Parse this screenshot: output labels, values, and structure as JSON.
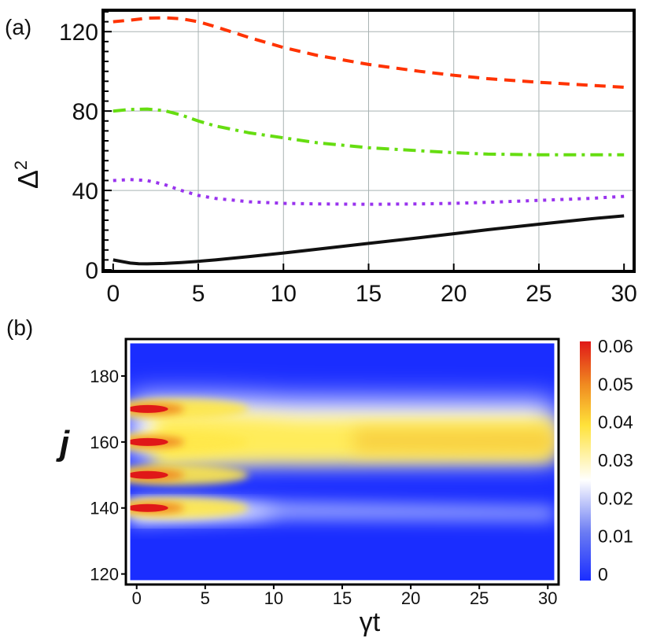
{
  "chart_data": [
    {
      "type": "line",
      "panel_label": "(a)",
      "ylabel": "Δ",
      "ylabel_superscript": "2",
      "xlabel": "",
      "xlim": [
        -0.5,
        30.5
      ],
      "ylim": [
        0,
        130
      ],
      "xticks": [
        0,
        5,
        10,
        15,
        20,
        25,
        30
      ],
      "yticks": [
        0,
        40,
        80,
        120
      ],
      "grid": true,
      "series": [
        {
          "name": "red-dashed",
          "color": "#ff3300",
          "style": "dashed",
          "x": [
            0,
            1,
            2,
            3,
            4,
            5,
            6,
            8,
            10,
            12,
            15,
            18,
            20,
            22,
            25,
            28,
            30
          ],
          "y": [
            125,
            125.8,
            126.8,
            127,
            126.5,
            125,
            122.5,
            117,
            112,
            108,
            103.5,
            100,
            98,
            96.3,
            94.5,
            93,
            92
          ]
        },
        {
          "name": "green-dash-dot",
          "color": "#66dd11",
          "style": "dashdot",
          "x": [
            0,
            1,
            2,
            3,
            4,
            5,
            6,
            8,
            10,
            12,
            15,
            18,
            20,
            22,
            25,
            28,
            30
          ],
          "y": [
            80,
            80.8,
            81,
            80.2,
            78,
            75,
            72.5,
            69,
            66.5,
            64,
            61.5,
            60,
            59,
            58.3,
            58,
            58,
            58
          ]
        },
        {
          "name": "purple-dotted",
          "color": "#9933ee",
          "style": "dotted",
          "x": [
            0,
            1,
            2,
            3,
            4,
            5,
            6,
            8,
            10,
            12,
            15,
            18,
            20,
            22,
            25,
            28,
            30
          ],
          "y": [
            45,
            45.5,
            45,
            43,
            40,
            37.5,
            36,
            34.3,
            33.5,
            33.2,
            33,
            33.2,
            33.5,
            34,
            35,
            36,
            37
          ]
        },
        {
          "name": "black-solid",
          "color": "#111111",
          "style": "solid",
          "x": [
            0,
            0.5,
            1,
            1.5,
            2,
            3,
            4,
            5,
            6,
            8,
            10,
            12,
            15,
            18,
            20,
            22,
            25,
            28,
            30
          ],
          "y": [
            5,
            4.2,
            3.4,
            3.1,
            3,
            3.2,
            3.7,
            4.3,
            5,
            6.7,
            8.5,
            10.4,
            13.3,
            16.2,
            18.2,
            20.2,
            23,
            25.7,
            27.2
          ]
        }
      ]
    },
    {
      "type": "heatmap",
      "panel_label": "(b)",
      "xlabel": "γt",
      "ylabel": "j",
      "xlim": [
        -0.5,
        30.5
      ],
      "ylim": [
        118,
        190
      ],
      "xticks": [
        0,
        5,
        10,
        15,
        20,
        25,
        30
      ],
      "yticks": [
        120,
        140,
        160,
        180
      ],
      "colorbar": {
        "range": [
          0,
          0.06
        ],
        "ticks": [
          "0",
          "0.01",
          "0.02",
          "0.03",
          "0.04",
          "0.05",
          "0.06"
        ],
        "colors": [
          "#1a2dff",
          "#6a7bf3",
          "#ffffff",
          "#ffe23a",
          "#f08a20",
          "#e01818"
        ]
      },
      "initial_peaks_j": [
        140,
        150,
        160,
        170
      ],
      "late_band_center_j": 160,
      "weak_band_center_j": 139
    }
  ]
}
